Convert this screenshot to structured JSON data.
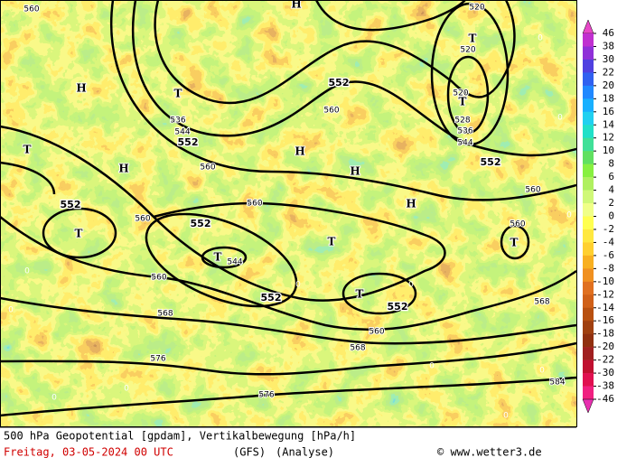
{
  "contour_labels": [
    "560",
    "520",
    "520",
    "520",
    "528",
    "536",
    "544",
    "552",
    "560",
    "536",
    "544",
    "552",
    "560",
    "552",
    "560",
    "560",
    "552",
    "560",
    "560",
    "552",
    "544",
    "552",
    "552",
    "560",
    "568",
    "568",
    "560",
    "568",
    "576",
    "576",
    "584"
  ],
  "pressure_centers": [
    "H",
    "H",
    "H",
    "H",
    "H",
    "H",
    "T",
    "T",
    "T",
    "T",
    "T",
    "T",
    "T",
    "T",
    "T"
  ],
  "zero_labels": [
    "0",
    "0",
    "0",
    "0",
    "0",
    "0",
    "0",
    "0",
    "0",
    "0",
    "0",
    "0"
  ],
  "legend": {
    "labels": [
      46,
      38,
      30,
      22,
      20,
      18,
      16,
      14,
      12,
      10,
      8,
      6,
      4,
      2,
      0,
      -2,
      -4,
      -6,
      -8,
      -10,
      -12,
      -14,
      -16,
      -18,
      -20,
      -22,
      -30,
      -38,
      -46
    ],
    "colors": [
      "#e848c8",
      "#c030d0",
      "#9030d8",
      "#5040e0",
      "#3060f0",
      "#2088ff",
      "#18b0ff",
      "#20d0f0",
      "#20e0c8",
      "#40e098",
      "#60e060",
      "#88f040",
      "#b0f060",
      "#d0f878",
      "#f0ff88",
      "#ffff50",
      "#ffe840",
      "#ffd030",
      "#f8b020",
      "#f09020",
      "#e07020",
      "#d06018",
      "#b85010",
      "#a04010",
      "#903010",
      "#a02020",
      "#c01030",
      "#e01050",
      "#f02080",
      "#e830b0"
    ]
  },
  "footer": {
    "title": "500 hPa Geopotential [gpdam], Vertikalbewegung [hPa/h]",
    "date": "Freitag, 03-05-2024  00 UTC",
    "model": "(GFS)",
    "run": "(Analyse)",
    "credit": "© www.wetter3.de"
  }
}
